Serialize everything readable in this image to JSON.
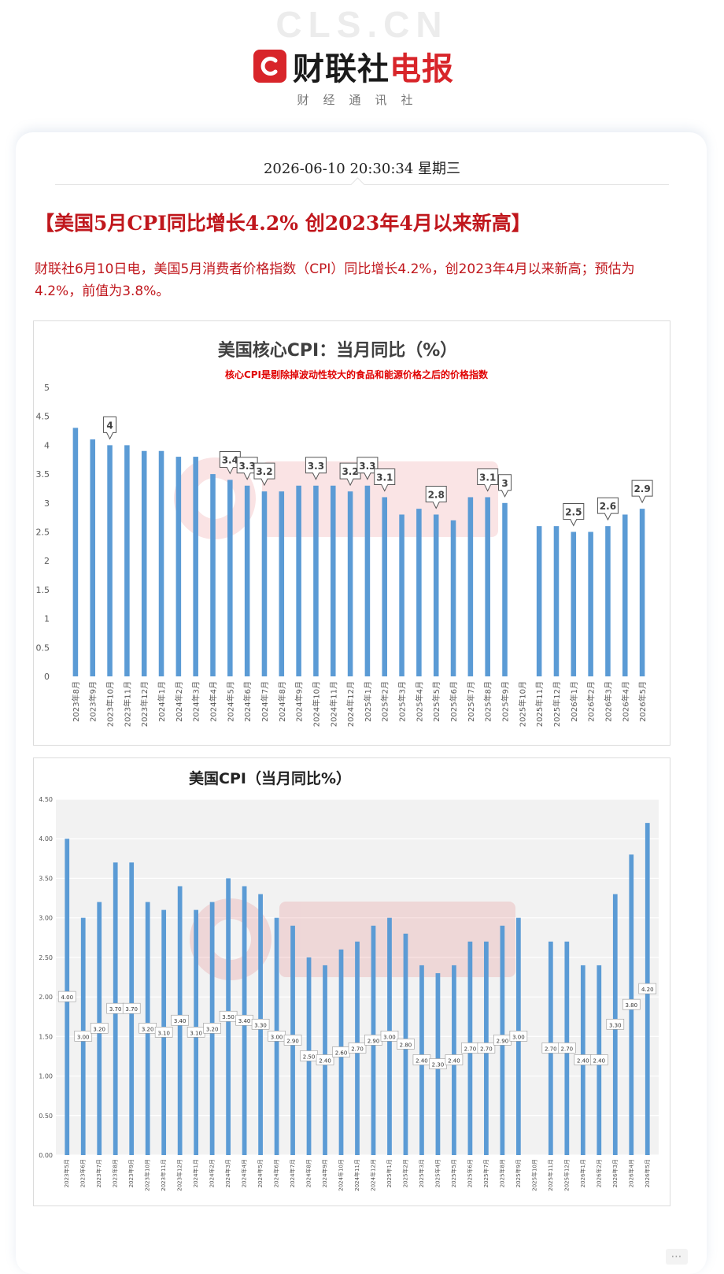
{
  "header": {
    "watermark": "CLS.CN",
    "brand_black": "财联社",
    "brand_red": "电报",
    "tagline": "财经通讯社",
    "brand_color": "#d8252a"
  },
  "article": {
    "datetime": "2026-06-10 20:30:34 星期三",
    "headline": "【美国5月CPI同比增长4.2% 创2023年4月以来新高】",
    "body": "财联社6月10日电，美国5月消费者价格指数（CPI）同比增长4.2%，创2023年4月以来新高；预估为4.2%，前值为3.8%。"
  },
  "more_icon": "more-dots-icon",
  "chart_data": [
    {
      "type": "bar",
      "title": "美国核心CPI：当月同比（%）",
      "subtitle": "核心CPI是剔除掉波动性较大的食品和能源价格之后的价格指数",
      "ylim": [
        0,
        5
      ],
      "yticks": [
        "0",
        "0.5",
        "1",
        "1.5",
        "2",
        "2.5",
        "3",
        "3.5",
        "4",
        "4.5",
        "5"
      ],
      "grid": false,
      "bar_color": "#5b9bd5",
      "categories": [
        "2023年8月",
        "2023年9月",
        "2023年10月",
        "2023年11月",
        "2023年12月",
        "2024年1月",
        "2024年2月",
        "2024年3月",
        "2024年4月",
        "2024年5月",
        "2024年6月",
        "2024年7月",
        "2024年8月",
        "2024年9月",
        "2024年10月",
        "2024年11月",
        "2024年12月",
        "2025年1月",
        "2025年2月",
        "2025年3月",
        "2025年4月",
        "2025年5月",
        "2025年6月",
        "2025年7月",
        "2025年8月",
        "2025年9月",
        "2025年10月",
        "2025年11月",
        "2025年12月",
        "2026年1月",
        "2026年2月",
        "2026年3月",
        "2026年4月",
        "2026年5月"
      ],
      "values": [
        4.3,
        4.1,
        4.0,
        4.0,
        3.9,
        3.9,
        3.8,
        3.8,
        3.5,
        3.4,
        3.3,
        3.2,
        3.2,
        3.3,
        3.3,
        3.3,
        3.2,
        3.3,
        3.1,
        2.8,
        2.9,
        2.8,
        2.7,
        3.1,
        3.1,
        3.0,
        null,
        2.6,
        2.6,
        2.5,
        2.5,
        2.6,
        2.8,
        2.9
      ],
      "data_labels": [
        {
          "index": 2,
          "text": "4"
        },
        {
          "index": 9,
          "text": "3.4"
        },
        {
          "index": 10,
          "text": "3.3"
        },
        {
          "index": 11,
          "text": "3.2"
        },
        {
          "index": 14,
          "text": "3.3"
        },
        {
          "index": 16,
          "text": "3.2"
        },
        {
          "index": 17,
          "text": "3.3"
        },
        {
          "index": 18,
          "text": "3.1"
        },
        {
          "index": 21,
          "text": "2.8"
        },
        {
          "index": 24,
          "text": "3.1"
        },
        {
          "index": 25,
          "text": "3"
        },
        {
          "index": 29,
          "text": "2.5"
        },
        {
          "index": 31,
          "text": "2.6"
        },
        {
          "index": 33,
          "text": "2.9"
        }
      ]
    },
    {
      "type": "bar",
      "title": "美国CPI（当月同比%）",
      "ylim": [
        0,
        4.5
      ],
      "yticks": [
        "0.00",
        "0.50",
        "1.00",
        "1.50",
        "2.00",
        "2.50",
        "3.00",
        "3.50",
        "4.00",
        "4.50"
      ],
      "grid": true,
      "bar_color": "#5b9bd5",
      "categories": [
        "2023年5月",
        "2023年6月",
        "2023年7月",
        "2023年8月",
        "2023年9月",
        "2023年10月",
        "2023年11月",
        "2023年12月",
        "2024年1月",
        "2024年2月",
        "2024年3月",
        "2024年4月",
        "2024年5月",
        "2024年6月",
        "2024年7月",
        "2024年8月",
        "2024年9月",
        "2024年10月",
        "2024年11月",
        "2024年12月",
        "2025年1月",
        "2025年2月",
        "2025年3月",
        "2025年4月",
        "2025年5月",
        "2025年6月",
        "2025年7月",
        "2025年8月",
        "2025年9月",
        "2025年10月",
        "2025年11月",
        "2025年12月",
        "2026年1月",
        "2026年2月",
        "2026年3月",
        "2026年4月",
        "2026年5月"
      ],
      "values": [
        4.0,
        3.0,
        3.2,
        3.7,
        3.7,
        3.2,
        3.1,
        3.4,
        3.1,
        3.2,
        3.5,
        3.4,
        3.3,
        3.0,
        2.9,
        2.5,
        2.4,
        2.6,
        2.7,
        2.9,
        3.0,
        2.8,
        2.4,
        2.3,
        2.4,
        2.7,
        2.7,
        2.9,
        3.0,
        null,
        2.7,
        2.7,
        2.4,
        2.4,
        3.3,
        3.8,
        4.2
      ],
      "data_labels": [
        "4.00",
        "3.00",
        "3.20",
        "3.70",
        "3.70",
        "3.20",
        "3.10",
        "3.40",
        "3.10",
        "3.20",
        "3.50",
        "3.40",
        "3.30",
        "3.00",
        "2.90",
        "2.50",
        "2.40",
        "2.60",
        "2.70",
        "2.90",
        "3.00",
        "2.80",
        "2.40",
        "2.30",
        "2.40",
        "2.70",
        "2.70",
        "2.90",
        "3.00",
        null,
        "2.70",
        "2.70",
        "2.40",
        "2.40",
        "3.30",
        "3.80",
        "4.20"
      ]
    }
  ]
}
